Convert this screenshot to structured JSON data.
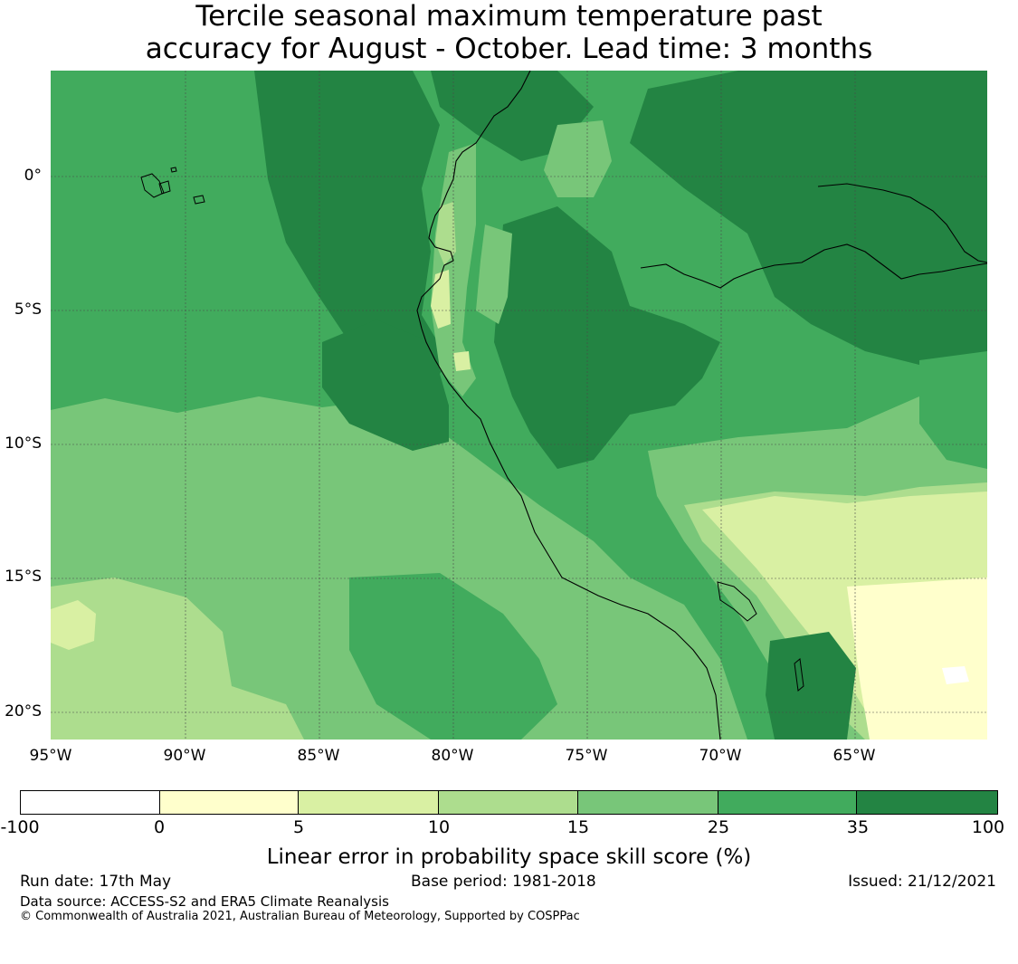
{
  "title_line1": "Tercile seasonal maximum temperature past",
  "title_line2": "accuracy for August - October. Lead time: 3 months",
  "lat_labels": [
    "0°",
    "5°S",
    "10°S",
    "15°S",
    "20°S"
  ],
  "lon_labels": [
    "95°W",
    "90°W",
    "85°W",
    "80°W",
    "75°W",
    "70°W",
    "65°W"
  ],
  "map": {
    "lon_range": [
      -95,
      -60
    ],
    "lat_range": [
      -21,
      4
    ],
    "gridlines": true
  },
  "colorbar": {
    "bounds": [
      "-100",
      "0",
      "5",
      "10",
      "15",
      "25",
      "35",
      "100"
    ],
    "colors": [
      "#ffffff",
      "#ffffcc",
      "#d9f0a3",
      "#addd8e",
      "#78c679",
      "#41ab5d",
      "#238443"
    ],
    "label": "Linear error in probability space skill score (%)"
  },
  "footer": {
    "run_date": "Run date: 17th May",
    "base_period": "Base period: 1981-2018",
    "issued": "Issued: 21/12/2021",
    "data_source": "Data source: ACCESS-S2 and ERA5 Climate Reanalysis",
    "copyright": "© Commonwealth of Australia 2021, Australian Bureau of Meteorology, Supported by COSPPac"
  }
}
